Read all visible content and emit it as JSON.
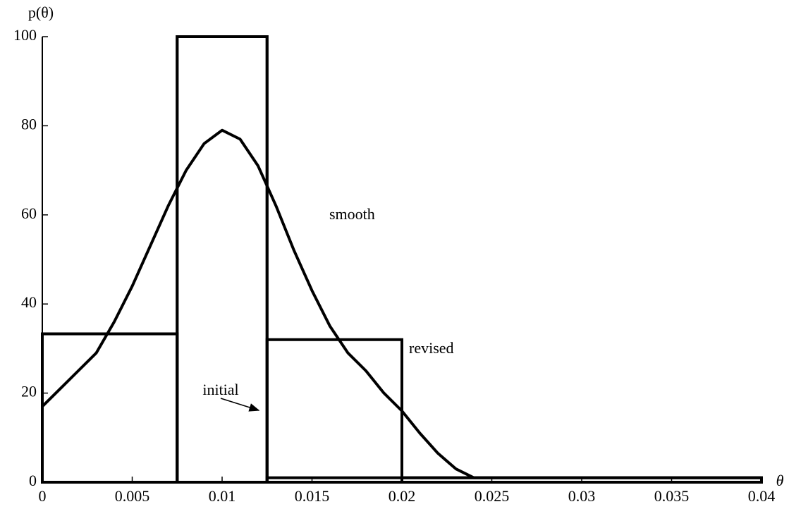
{
  "chart_data": {
    "type": "histogram",
    "xlabel": "θ",
    "ylabel": "p(θ)",
    "xlim": [
      0,
      0.04
    ],
    "ylim": [
      0,
      100
    ],
    "xticks": [
      0,
      0.005,
      0.01,
      0.015,
      0.02,
      0.025,
      0.03,
      0.035,
      0.04
    ],
    "yticks": [
      0,
      20,
      40,
      60,
      80,
      100
    ],
    "series": [
      {
        "name": "initial",
        "color": "#000000",
        "bins": [
          0,
          0.0075,
          0.0125,
          0.04
        ],
        "values": [
          33.3,
          100,
          1
        ]
      },
      {
        "name": "revised",
        "color": "#000000",
        "bins": [
          0,
          0.0075,
          0.0125,
          0.02,
          0.04
        ],
        "values": [
          33.3,
          100,
          32,
          1
        ]
      },
      {
        "name": "smooth",
        "type": "line",
        "color": "#000000",
        "x": [
          0,
          0.001,
          0.002,
          0.003,
          0.004,
          0.005,
          0.006,
          0.007,
          0.008,
          0.009,
          0.01,
          0.011,
          0.012,
          0.013,
          0.014,
          0.015,
          0.016,
          0.017,
          0.018,
          0.019,
          0.02,
          0.021,
          0.022,
          0.023,
          0.024,
          0.025,
          0.04
        ],
        "values": [
          17,
          21,
          25,
          29,
          36,
          44,
          53,
          62,
          70,
          76,
          79,
          77,
          71,
          62,
          52,
          43,
          35,
          29,
          25,
          20,
          16,
          11,
          6.5,
          3,
          1,
          1,
          1
        ]
      }
    ]
  }
}
